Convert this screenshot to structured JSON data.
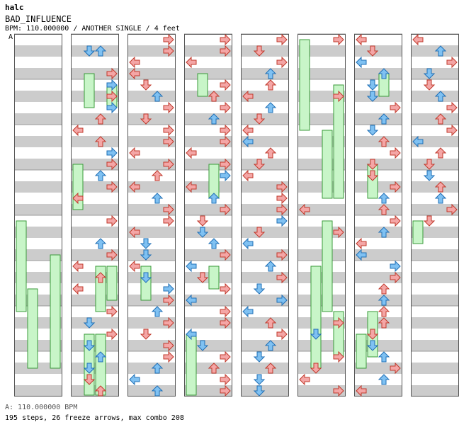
{
  "header": {
    "artist": "halc",
    "song": "BAD_INFLUENCE",
    "info": "BPM: 110.000000 / ANOTHER SINGLE / 4 feet"
  },
  "bpm_marker": "A",
  "footer": {
    "bpm_line": "A: 110.000000 BPM",
    "stats": "195 steps, 26 freeze arrows, max combo 208"
  },
  "colors": {
    "red_arrow": "#f4a6a6",
    "red_stroke": "#c0392b",
    "blue_arrow": "#7fc1f2",
    "blue_stroke": "#1f6fb5",
    "freeze_fill": "#c8f5c8",
    "freeze_stroke": "#3a9a3a",
    "stripe": "#cccccc"
  },
  "chart_data": {
    "type": "stepchart",
    "columns": 8,
    "measures_per_column": 8,
    "arrows": [
      [
        2,
        1,
        2,
        1
      ],
      [
        2,
        1,
        1,
        2
      ],
      [
        2,
        1,
        1,
        1
      ],
      [
        2,
        3,
        3,
        0
      ],
      [
        2,
        4,
        3,
        1
      ],
      [
        2,
        5,
        3,
        0
      ],
      [
        2,
        6,
        3,
        1
      ],
      [
        2,
        7,
        2,
        0
      ],
      [
        2,
        8,
        0,
        0
      ],
      [
        2,
        9,
        2,
        3
      ],
      [
        2,
        10,
        3,
        1
      ],
      [
        2,
        11,
        3,
        2
      ],
      [
        2,
        12,
        2,
        1
      ],
      [
        2,
        13,
        3,
        3
      ],
      [
        2,
        14,
        0,
        0
      ],
      [
        2,
        16,
        3,
        3
      ],
      [
        2,
        18,
        2,
        2
      ],
      [
        2,
        19,
        3,
        2
      ],
      [
        2,
        20,
        0,
        3
      ],
      [
        2,
        21,
        2,
        3
      ],
      [
        2,
        22,
        0,
        2
      ],
      [
        2,
        24,
        3,
        3
      ],
      [
        2,
        25,
        1,
        2
      ],
      [
        2,
        26,
        3,
        0
      ],
      [
        2,
        27,
        1,
        2
      ],
      [
        2,
        28,
        2,
        1
      ],
      [
        2,
        29,
        1,
        1
      ],
      [
        2,
        30,
        1,
        3
      ],
      [
        2,
        31,
        2,
        0
      ],
      [
        3,
        0,
        3,
        3
      ],
      [
        3,
        1,
        3,
        3
      ],
      [
        3,
        2,
        0,
        0
      ],
      [
        3,
        3,
        0,
        0
      ],
      [
        3,
        4,
        1,
        3
      ],
      [
        3,
        5,
        2,
        1
      ],
      [
        3,
        6,
        3,
        0
      ],
      [
        3,
        7,
        1,
        3
      ],
      [
        3,
        8,
        3,
        3
      ],
      [
        3,
        9,
        3,
        0
      ],
      [
        3,
        10,
        0,
        2
      ],
      [
        3,
        11,
        3,
        3
      ],
      [
        3,
        12,
        2,
        3
      ],
      [
        3,
        13,
        0,
        0
      ],
      [
        3,
        14,
        2,
        2
      ],
      [
        3,
        15,
        3,
        0
      ],
      [
        3,
        16,
        3,
        3
      ],
      [
        3,
        17,
        0,
        0
      ],
      [
        3,
        18,
        1,
        2
      ],
      [
        3,
        19,
        1,
        1
      ],
      [
        3,
        20,
        0,
        3
      ],
      [
        3,
        21,
        1,
        1
      ],
      [
        3,
        22,
        3,
        1
      ],
      [
        3,
        23,
        3,
        0
      ],
      [
        3,
        24,
        2,
        1
      ],
      [
        3,
        25,
        3,
        3
      ],
      [
        3,
        26,
        1,
        0
      ],
      [
        3,
        27,
        3,
        0
      ],
      [
        3,
        28,
        3,
        3
      ],
      [
        3,
        29,
        2,
        2
      ],
      [
        3,
        30,
        0,
        1
      ],
      [
        3,
        31,
        2,
        2
      ],
      [
        4,
        0,
        3,
        3
      ],
      [
        4,
        1,
        3,
        2
      ],
      [
        4,
        2,
        0,
        0
      ],
      [
        4,
        4,
        3,
        0
      ],
      [
        4,
        5,
        2,
        3
      ],
      [
        4,
        6,
        3,
        0
      ],
      [
        4,
        7,
        2,
        1
      ],
      [
        4,
        8,
        3,
        3
      ],
      [
        4,
        9,
        3,
        2
      ],
      [
        4,
        10,
        0,
        2
      ],
      [
        4,
        11,
        3,
        0
      ],
      [
        4,
        12,
        3,
        1
      ],
      [
        4,
        13,
        0,
        0
      ],
      [
        4,
        14,
        2,
        1
      ],
      [
        4,
        15,
        3,
        3
      ],
      [
        4,
        16,
        1,
        0
      ],
      [
        4,
        17,
        1,
        2
      ],
      [
        4,
        18,
        2,
        2
      ],
      [
        4,
        19,
        3,
        3
      ],
      [
        4,
        20,
        0,
        1
      ],
      [
        4,
        21,
        1,
        0
      ],
      [
        4,
        22,
        3,
        2
      ],
      [
        4,
        23,
        0,
        1
      ],
      [
        4,
        24,
        3,
        3
      ],
      [
        4,
        25,
        3,
        3
      ],
      [
        4,
        26,
        0,
        1
      ],
      [
        4,
        27,
        1,
        2
      ],
      [
        4,
        28,
        3,
        2
      ],
      [
        4,
        29,
        2,
        3
      ],
      [
        4,
        30,
        3,
        2
      ],
      [
        4,
        31,
        3,
        0
      ],
      [
        5,
        0,
        3,
        3
      ],
      [
        5,
        1,
        1,
        0
      ],
      [
        5,
        2,
        3,
        0
      ],
      [
        5,
        3,
        2,
        1
      ],
      [
        5,
        4,
        2,
        3
      ],
      [
        5,
        5,
        0,
        2
      ],
      [
        5,
        6,
        2,
        1
      ],
      [
        5,
        7,
        1,
        3
      ],
      [
        5,
        8,
        0,
        2
      ],
      [
        5,
        9,
        0,
        1
      ],
      [
        5,
        10,
        2,
        0
      ],
      [
        5,
        11,
        1,
        3
      ],
      [
        5,
        12,
        0,
        0
      ],
      [
        5,
        13,
        3,
        0
      ],
      [
        5,
        14,
        3,
        2
      ],
      [
        5,
        15,
        3,
        2
      ],
      [
        5,
        16,
        3,
        1
      ],
      [
        5,
        17,
        1,
        0
      ],
      [
        5,
        18,
        0,
        1
      ],
      [
        5,
        19,
        3,
        3
      ],
      [
        5,
        20,
        2,
        1
      ],
      [
        5,
        21,
        3,
        2
      ],
      [
        5,
        22,
        1,
        2
      ],
      [
        5,
        23,
        3,
        1
      ],
      [
        5,
        24,
        0,
        1
      ],
      [
        5,
        25,
        2,
        0
      ],
      [
        5,
        26,
        3,
        0
      ],
      [
        5,
        27,
        2,
        2
      ],
      [
        5,
        28,
        1,
        2
      ],
      [
        5,
        29,
        2,
        3
      ],
      [
        5,
        30,
        1,
        2
      ],
      [
        5,
        31,
        1,
        1
      ],
      [
        6,
        0,
        3,
        3
      ],
      [
        6,
        5,
        3,
        3
      ],
      [
        6,
        15,
        0,
        0
      ],
      [
        6,
        17,
        3,
        3
      ],
      [
        6,
        25,
        3,
        2
      ],
      [
        6,
        26,
        1,
        1
      ],
      [
        6,
        28,
        3,
        3
      ],
      [
        6,
        29,
        1,
        3
      ],
      [
        6,
        30,
        0,
        0
      ],
      [
        6,
        31,
        3,
        0
      ],
      [
        7,
        0,
        0,
        0
      ],
      [
        7,
        1,
        1,
        3
      ],
      [
        7,
        2,
        0,
        1
      ],
      [
        7,
        3,
        2,
        2
      ],
      [
        7,
        4,
        1,
        2
      ],
      [
        7,
        5,
        1,
        1
      ],
      [
        7,
        6,
        3,
        3
      ],
      [
        7,
        7,
        2,
        1
      ],
      [
        7,
        8,
        1,
        2
      ],
      [
        7,
        9,
        2,
        0
      ],
      [
        7,
        10,
        3,
        2
      ],
      [
        7,
        11,
        1,
        0
      ],
      [
        7,
        12,
        1,
        3
      ],
      [
        7,
        13,
        3,
        3
      ],
      [
        7,
        14,
        2,
        2
      ],
      [
        7,
        15,
        2,
        3
      ],
      [
        7,
        16,
        3,
        3
      ],
      [
        7,
        17,
        2,
        1
      ],
      [
        7,
        18,
        0,
        2
      ],
      [
        7,
        19,
        0,
        1
      ],
      [
        7,
        20,
        3,
        1
      ],
      [
        7,
        21,
        3,
        0
      ],
      [
        7,
        22,
        2,
        3
      ],
      [
        7,
        23,
        2,
        2
      ],
      [
        7,
        24,
        2,
        0
      ],
      [
        7,
        25,
        2,
        3
      ],
      [
        7,
        26,
        1,
        0
      ],
      [
        7,
        27,
        1,
        2
      ],
      [
        7,
        28,
        2,
        1
      ],
      [
        7,
        29,
        3,
        3
      ],
      [
        7,
        30,
        2,
        2
      ],
      [
        7,
        31,
        0,
        0
      ],
      [
        8,
        0,
        0,
        0
      ],
      [
        8,
        1,
        2,
        2
      ],
      [
        8,
        2,
        3,
        3
      ],
      [
        8,
        3,
        1,
        1
      ],
      [
        8,
        4,
        1,
        0
      ],
      [
        8,
        5,
        2,
        2
      ],
      [
        8,
        6,
        3,
        0
      ],
      [
        8,
        7,
        2,
        3
      ],
      [
        8,
        8,
        3,
        2
      ],
      [
        8,
        9,
        0,
        1
      ],
      [
        8,
        10,
        2,
        3
      ],
      [
        8,
        11,
        1,
        3
      ],
      [
        8,
        12,
        1,
        1
      ],
      [
        8,
        13,
        2,
        3
      ],
      [
        8,
        14,
        2,
        2
      ],
      [
        8,
        15,
        3,
        0
      ],
      [
        8,
        16,
        1,
        3
      ]
    ],
    "freezes": [
      [
        1,
        16,
        0,
        24
      ],
      [
        1,
        22,
        1,
        29
      ],
      [
        1,
        19,
        3,
        29
      ],
      [
        2,
        3,
        1,
        6
      ],
      [
        2,
        4,
        3,
        6
      ],
      [
        2,
        11,
        0,
        15
      ],
      [
        2,
        26,
        1,
        32
      ],
      [
        2,
        26,
        2,
        32
      ],
      [
        2,
        20,
        2,
        24
      ],
      [
        2,
        20,
        3,
        23
      ],
      [
        3,
        20,
        1,
        23
      ],
      [
        4,
        3,
        1,
        5
      ],
      [
        4,
        11,
        2,
        14
      ],
      [
        4,
        20,
        2,
        22
      ],
      [
        4,
        26,
        0,
        32
      ],
      [
        6,
        0,
        0,
        8
      ],
      [
        6,
        8,
        2,
        14
      ],
      [
        6,
        4,
        3,
        14
      ],
      [
        6,
        16,
        2,
        24
      ],
      [
        6,
        20,
        1,
        29
      ],
      [
        6,
        24,
        3,
        28
      ],
      [
        7,
        11,
        1,
        14
      ],
      [
        7,
        24,
        1,
        28
      ],
      [
        7,
        26,
        0,
        29
      ],
      [
        7,
        3,
        2,
        5
      ],
      [
        8,
        16,
        0,
        18
      ]
    ]
  }
}
